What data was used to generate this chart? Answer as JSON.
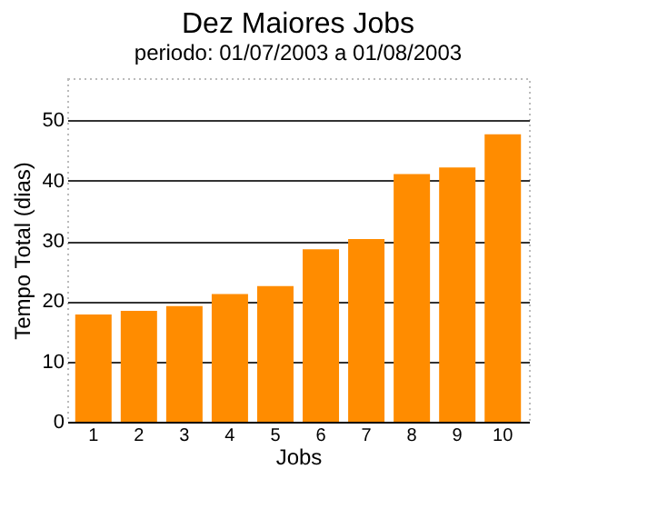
{
  "chart_data": {
    "type": "bar",
    "title": "Dez Maiores Jobs",
    "subtitle": "periodo: 01/07/2003 a 01/08/2003",
    "xlabel": "Jobs",
    "ylabel": "Tempo Total (dias)",
    "categories": [
      "1",
      "2",
      "3",
      "4",
      "5",
      "6",
      "7",
      "8",
      "9",
      "10"
    ],
    "values": [
      17.8,
      18.4,
      19.2,
      21.2,
      22.5,
      28.6,
      30.3,
      41.1,
      42.2,
      47.7
    ],
    "color": "#ff8c00",
    "ylim": [
      0,
      57
    ],
    "yticks": [
      0,
      10,
      20,
      30,
      40,
      50
    ],
    "grid": "y"
  }
}
